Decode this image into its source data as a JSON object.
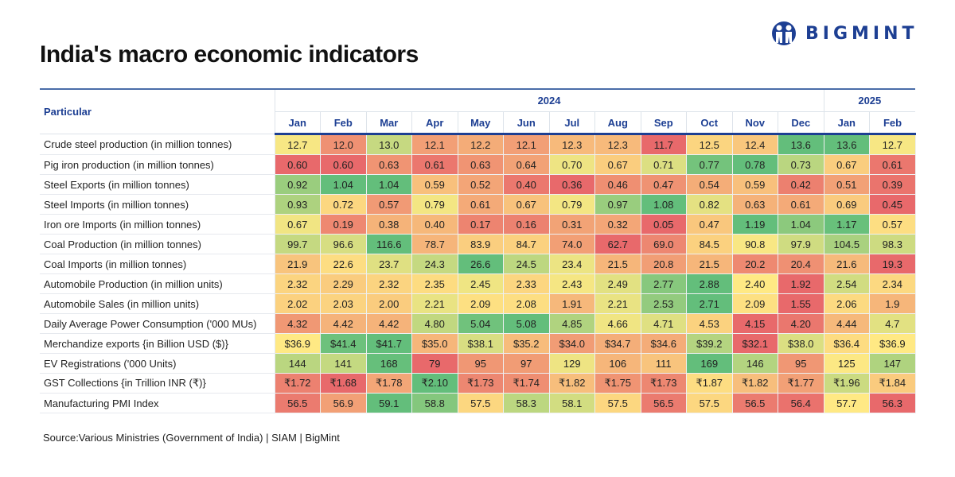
{
  "header": {
    "title": "India's macro economic indicators",
    "logo_text": "BIGMINT"
  },
  "colors": {
    "low": "#e8696b",
    "mid": "#ffe984",
    "high": "#63be7b",
    "brand": "#1d3f93"
  },
  "chart_data": {
    "type": "heatmap",
    "row_header": "Particular",
    "years": [
      {
        "label": "2024",
        "span": 12
      },
      {
        "label": "2025",
        "span": 2
      }
    ],
    "columns": [
      "Jan",
      "Feb",
      "Mar",
      "Apr",
      "May",
      "Jun",
      "Jul",
      "Aug",
      "Sep",
      "Oct",
      "Nov",
      "Dec",
      "Jan",
      "Feb"
    ],
    "color_scale": "per-row red (low) - yellow - green (high)",
    "rows": [
      {
        "label": "Crude steel production (in million tonnes)",
        "values": [
          "12.7",
          "12.0",
          "13.0",
          "12.1",
          "12.2",
          "12.1",
          "12.3",
          "12.3",
          "11.7",
          "12.5",
          "12.4",
          "13.6",
          "13.6",
          "12.7"
        ]
      },
      {
        "label": "Pig iron production (in million tonnes)",
        "values": [
          "0.60",
          "0.60",
          "0.63",
          "0.61",
          "0.63",
          "0.64",
          "0.70",
          "0.67",
          "0.71",
          "0.77",
          "0.78",
          "0.73",
          "0.67",
          "0.61"
        ]
      },
      {
        "label": "Steel Exports (in million tonnes)",
        "values": [
          "0.92",
          "1.04",
          "1.04",
          "0.59",
          "0.52",
          "0.40",
          "0.36",
          "0.46",
          "0.47",
          "0.54",
          "0.59",
          "0.42",
          "0.51",
          "0.39"
        ]
      },
      {
        "label": "Steel Imports (in million tonnes)",
        "values": [
          "0.93",
          "0.72",
          "0.57",
          "0.79",
          "0.61",
          "0.67",
          "0.79",
          "0.97",
          "1.08",
          "0.82",
          "0.63",
          "0.61",
          "0.69",
          "0.45"
        ]
      },
      {
        "label": "Iron ore Imports (in million tonnes)",
        "values": [
          "0.67",
          "0.19",
          "0.38",
          "0.40",
          "0.17",
          "0.16",
          "0.31",
          "0.32",
          "0.05",
          "0.47",
          "1.19",
          "1.04",
          "1.17",
          "0.57"
        ]
      },
      {
        "label": "Coal Production (in million tonnes)",
        "values": [
          "99.7",
          "96.6",
          "116.6",
          "78.7",
          "83.9",
          "84.7",
          "74.0",
          "62.7",
          "69.0",
          "84.5",
          "90.8",
          "97.9",
          "104.5",
          "98.3"
        ]
      },
      {
        "label": "Coal Imports (in million tonnes)",
        "values": [
          "21.9",
          "22.6",
          "23.7",
          "24.3",
          "26.6",
          "24.5",
          "23.4",
          "21.5",
          "20.8",
          "21.5",
          "20.2",
          "20.4",
          "21.6",
          "19.3"
        ]
      },
      {
        "label": "Automobile Production (in million units)",
        "values": [
          "2.32",
          "2.29",
          "2.32",
          "2.35",
          "2.45",
          "2.33",
          "2.43",
          "2.49",
          "2.77",
          "2.88",
          "2.40",
          "1.92",
          "2.54",
          "2.34"
        ]
      },
      {
        "label": "Automobile Sales (in million units)",
        "values": [
          "2.02",
          "2.03",
          "2.00",
          "2.21",
          "2.09",
          "2.08",
          "1.91",
          "2.21",
          "2.53",
          "2.71",
          "2.09",
          "1.55",
          "2.06",
          "1.9"
        ]
      },
      {
        "label": "Daily Average Power Consumption ('000 MUs)",
        "values": [
          "4.32",
          "4.42",
          "4.42",
          "4.80",
          "5.04",
          "5.08",
          "4.85",
          "4.66",
          "4.71",
          "4.53",
          "4.15",
          "4.20",
          "4.44",
          "4.7"
        ]
      },
      {
        "label": "Merchandize exports {in Billion USD ($)}",
        "values": [
          "$36.9",
          "$41.4",
          "$41.7",
          "$35.0",
          "$38.1",
          "$35.2",
          "$34.0",
          "$34.7",
          "$34.6",
          "$39.2",
          "$32.1",
          "$38.0",
          "$36.4",
          "$36.9"
        ]
      },
      {
        "label": "EV Registrations ('000 Units)",
        "values": [
          "144",
          "141",
          "168",
          "79",
          "95",
          "97",
          "129",
          "106",
          "111",
          "169",
          "146",
          "95",
          "125",
          "147"
        ]
      },
      {
        "label": "GST Collections {in Trillion INR (₹)}",
        "values": [
          "₹1.72",
          "₹1.68",
          "₹1.78",
          "₹2.10",
          "₹1.73",
          "₹1.74",
          "₹1.82",
          "₹1.75",
          "₹1.73",
          "₹1.87",
          "₹1.82",
          "₹1.77",
          "₹1.96",
          "₹1.84"
        ]
      },
      {
        "label": "Manufacturing PMI Index",
        "values": [
          "56.5",
          "56.9",
          "59.1",
          "58.8",
          "57.5",
          "58.3",
          "58.1",
          "57.5",
          "56.5",
          "57.5",
          "56.5",
          "56.4",
          "57.7",
          "56.3"
        ]
      }
    ]
  },
  "footer": {
    "source": "Source:Various Ministries (Government of India) | SIAM | BigMint"
  }
}
